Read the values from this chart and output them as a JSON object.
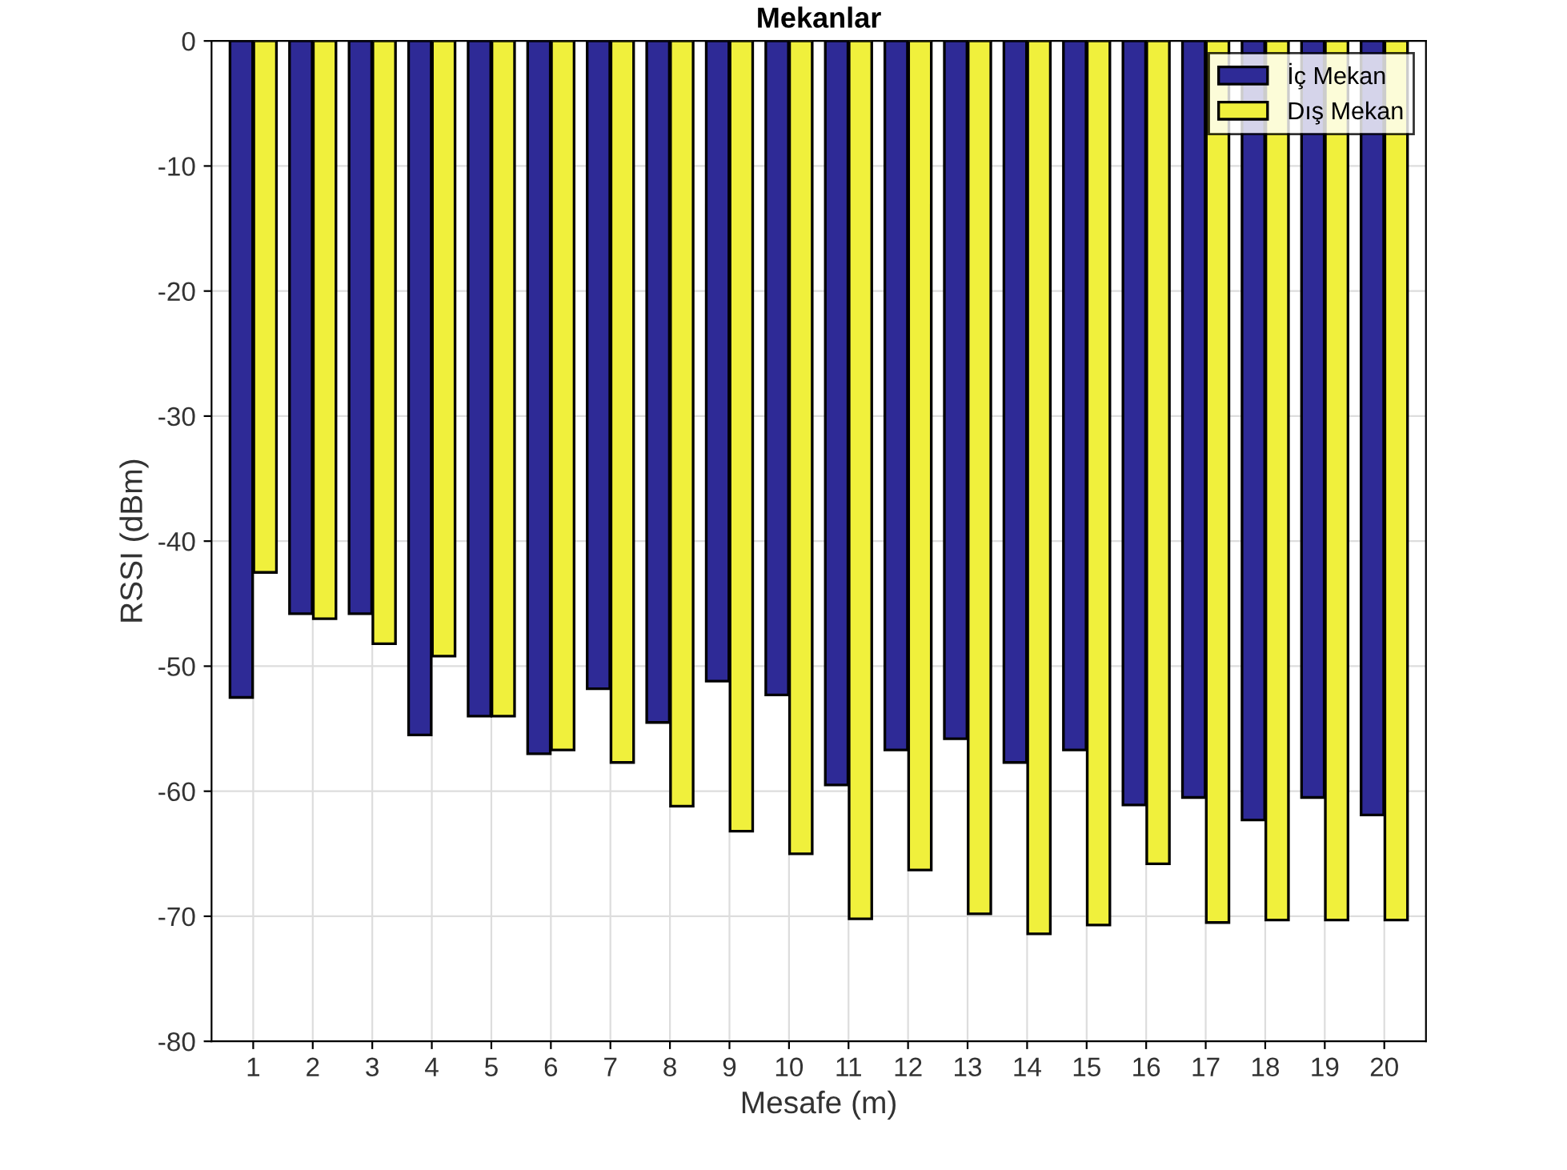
{
  "chart_data": {
    "type": "bar",
    "title": "Mekanlar",
    "xlabel": "Mesafe (m)",
    "ylabel": "RSSI (dBm)",
    "categories": [
      "1",
      "2",
      "3",
      "4",
      "5",
      "6",
      "7",
      "8",
      "9",
      "10",
      "11",
      "12",
      "13",
      "14",
      "15",
      "16",
      "17",
      "18",
      "19",
      "20"
    ],
    "series": [
      {
        "name": "İç Mekan",
        "color": "#2e2a96",
        "values": [
          -52.5,
          -45.8,
          -45.8,
          -55.5,
          -54,
          -57,
          -51.8,
          -54.5,
          -51.2,
          -52.3,
          -59.5,
          -56.7,
          -55.8,
          -57.7,
          -56.7,
          -61.1,
          -60.5,
          -62.3,
          -60.5,
          -61.9
        ]
      },
      {
        "name": "Dış Mekan",
        "color": "#f0f03c",
        "values": [
          -42.5,
          -46.2,
          -48.2,
          -49.2,
          -54,
          -56.7,
          -57.7,
          -61.2,
          -63.2,
          -65,
          -70.2,
          -66.3,
          -69.8,
          -71.4,
          -70.7,
          -65.8,
          -70.5,
          -70.3,
          -70.3,
          -70.3
        ]
      }
    ],
    "ylim": [
      -80,
      0
    ],
    "yticks": [
      -80,
      -70,
      -60,
      -50,
      -40,
      -30,
      -20,
      -10,
      0
    ],
    "grid": true,
    "legend": "top right"
  }
}
